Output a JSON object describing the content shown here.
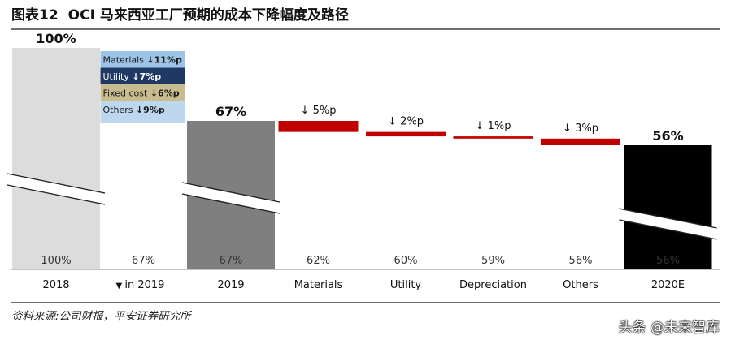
{
  "header": {
    "figure_no": "图表12",
    "title": "OCI 马来西亚工厂预期的成本下降幅度及路径"
  },
  "footer": {
    "source": "资料来源:公司财报，平安证券研究所",
    "watermark": "头条 @未来智库"
  },
  "chart_data": {
    "type": "bar",
    "subtype": "waterfall",
    "categories": [
      "2018",
      "in 2019",
      "2019",
      "Materials",
      "Utility",
      "Depreciation",
      "Others",
      "2020E"
    ],
    "category_marker": "▼",
    "values": [
      100,
      67,
      67,
      62,
      60,
      59,
      56,
      56
    ],
    "bottom_labels": [
      "100%",
      "67%",
      "67%",
      "62%",
      "60%",
      "59%",
      "56%",
      "56%"
    ],
    "totals": [
      {
        "category": "2018",
        "value": 100,
        "label": "100%",
        "color": "#dcdcdc"
      },
      {
        "category": "2019",
        "value": 67,
        "label": "67%",
        "color": "#7f7f7f"
      },
      {
        "category": "2020E",
        "value": 56,
        "label": "56%",
        "color": "#000000"
      }
    ],
    "steps": [
      {
        "category": "Materials",
        "from": 67,
        "to": 62,
        "label": "↓ 5%p",
        "color": "#c00000"
      },
      {
        "category": "Utility",
        "from": 62,
        "to": 60,
        "label": "↓ 2%p",
        "color": "#c00000"
      },
      {
        "category": "Depreciation",
        "from": 60,
        "to": 59,
        "label": "↓ 1%p",
        "color": "#c00000"
      },
      {
        "category": "Others",
        "from": 59,
        "to": 56,
        "label": "↓ 3%p",
        "color": "#c00000"
      }
    ],
    "breakdown_2019": {
      "category": "in 2019",
      "items": [
        {
          "name": "Materials",
          "value": 11,
          "text": "Materials ",
          "value_text": "↓11%p",
          "bg": "#9dc3e6",
          "fg": "#1a1a1a"
        },
        {
          "name": "Utility",
          "value": 7,
          "text": "Utility ",
          "value_text": "↓7%p",
          "bg": "#1f3864",
          "fg": "#ffffff"
        },
        {
          "name": "Fixed cost",
          "value": 6,
          "text": "Fixed cost ",
          "value_text": "↓6%p",
          "bg": "#c9bc8f",
          "fg": "#1a1a1a"
        },
        {
          "name": "Others",
          "value": 9,
          "text": "Others ",
          "value_text": "↓9%p",
          "bg": "#bdd7ee",
          "fg": "#1a1a1a"
        }
      ]
    },
    "axis_break": true,
    "grid": false,
    "legend": "none"
  }
}
